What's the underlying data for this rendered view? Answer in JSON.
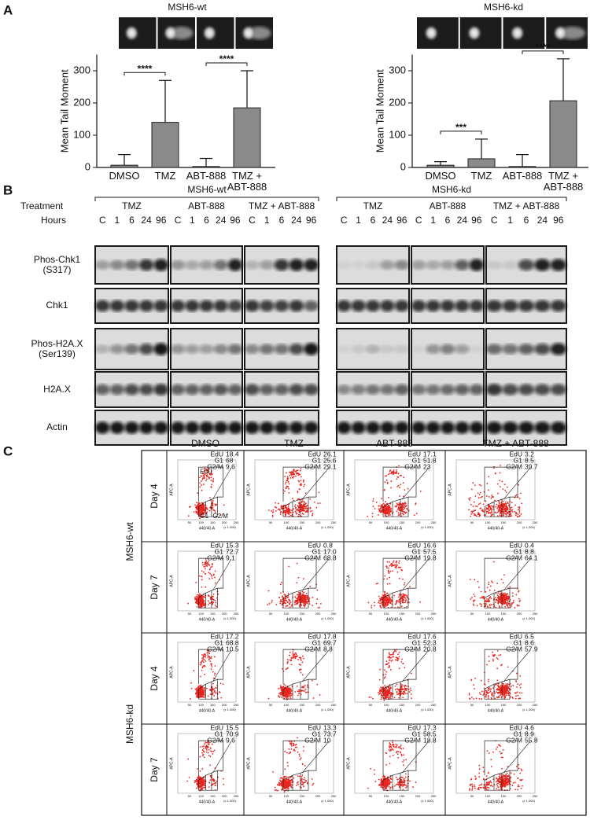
{
  "panel_labels": [
    "A",
    "B",
    "C"
  ],
  "chart_data": [
    {
      "type": "bar",
      "title": "MSH6-wt",
      "y_label": "Mean Tail Moment",
      "categories": [
        "DMSO",
        "TMZ",
        "ABT-888",
        "TMZ + ABT-888"
      ],
      "values": [
        7,
        140,
        3,
        185
      ],
      "errors": [
        33,
        130,
        25,
        115
      ],
      "color": "#8a8a8a",
      "ylim": [
        0,
        350
      ],
      "yticks": [
        0,
        100,
        200,
        300
      ],
      "annotations": [
        {
          "label": "****",
          "between": [
            "DMSO",
            "TMZ"
          ]
        },
        {
          "label": "****",
          "between": [
            "ABT-888",
            "TMZ + ABT-888"
          ]
        }
      ]
    },
    {
      "type": "bar",
      "title": "MSH6-kd",
      "y_label": "Mean Tail Moment",
      "categories": [
        "DMSO",
        "TMZ",
        "ABT-888",
        "TMZ + ABT-888"
      ],
      "values": [
        7,
        27,
        3,
        207
      ],
      "errors": [
        11,
        61,
        37,
        130
      ],
      "color": "#8a8a8a",
      "ylim": [
        0,
        350
      ],
      "yticks": [
        0,
        100,
        200,
        300
      ],
      "annotations": [
        {
          "label": "***",
          "between": [
            "DMSO",
            "TMZ"
          ]
        },
        {
          "label": "****",
          "between": [
            "ABT-888",
            "TMZ + ABT-888"
          ]
        }
      ]
    }
  ],
  "panel_b": {
    "treatment_label": "Treatment",
    "hours_label": "Hours",
    "hours": [
      "C",
      "1",
      "6",
      "24",
      "96"
    ],
    "groups": [
      {
        "name": "MSH6-wt",
        "treatments": [
          "TMZ",
          "ABT-888",
          "TMZ + ABT-888"
        ]
      },
      {
        "name": "MSH6-kd",
        "treatments": [
          "TMZ",
          "ABT-888",
          "TMZ + ABT-888"
        ]
      }
    ],
    "rows": [
      "Phos-Chk1 (S317)",
      "Chk1",
      "Phos-H2A.X (Ser139)",
      "H2A.X",
      "Actin"
    ]
  },
  "panel_c": {
    "columns": [
      "DMSO",
      "TMZ",
      "ABT-888",
      "TMZ + ABT-888"
    ],
    "gate_names": [
      "EdU",
      "G1",
      "G2/M"
    ],
    "x_label": "440/40-A",
    "y_label": "APC-A",
    "x_multiplier": "(x 1,000)",
    "xticks": [
      "50",
      "100",
      "150",
      "200",
      "250"
    ],
    "groups": [
      {
        "name": "MSH6-wt",
        "rows": [
          {
            "day": "Day 4",
            "cells": [
              [
                "18.4",
                "68",
                "9.6"
              ],
              [
                "26.1",
                "25.6",
                "29.1"
              ],
              [
                "17.1",
                "51.8",
                "23"
              ],
              [
                "3.2",
                "8.5",
                "39.7"
              ]
            ]
          },
          {
            "day": "Day 7",
            "cells": [
              [
                "15.3",
                "72.7",
                "9.1"
              ],
              [
                "0.8",
                "17.0",
                "68.8"
              ],
              [
                "16.6",
                "57.5",
                "19.8"
              ],
              [
                "0.4",
                "8.8",
                "64.1"
              ]
            ]
          }
        ]
      },
      {
        "name": "MSH6-kd",
        "rows": [
          {
            "day": "Day 4",
            "cells": [
              [
                "17.2",
                "68.8",
                "10.5"
              ],
              [
                "17.8",
                "69.7",
                "8.8"
              ],
              [
                "17.6",
                "52.3",
                "20.8"
              ],
              [
                "6.5",
                "8.6",
                "57.9"
              ]
            ]
          },
          {
            "day": "Day 7",
            "cells": [
              [
                "15.5",
                "70.9",
                "9.6"
              ],
              [
                "13.3",
                "73.7",
                "10"
              ],
              [
                "17.3",
                "58.5",
                "18.8"
              ],
              [
                "4.6",
                "8.9",
                "55.8"
              ]
            ]
          }
        ]
      }
    ]
  }
}
